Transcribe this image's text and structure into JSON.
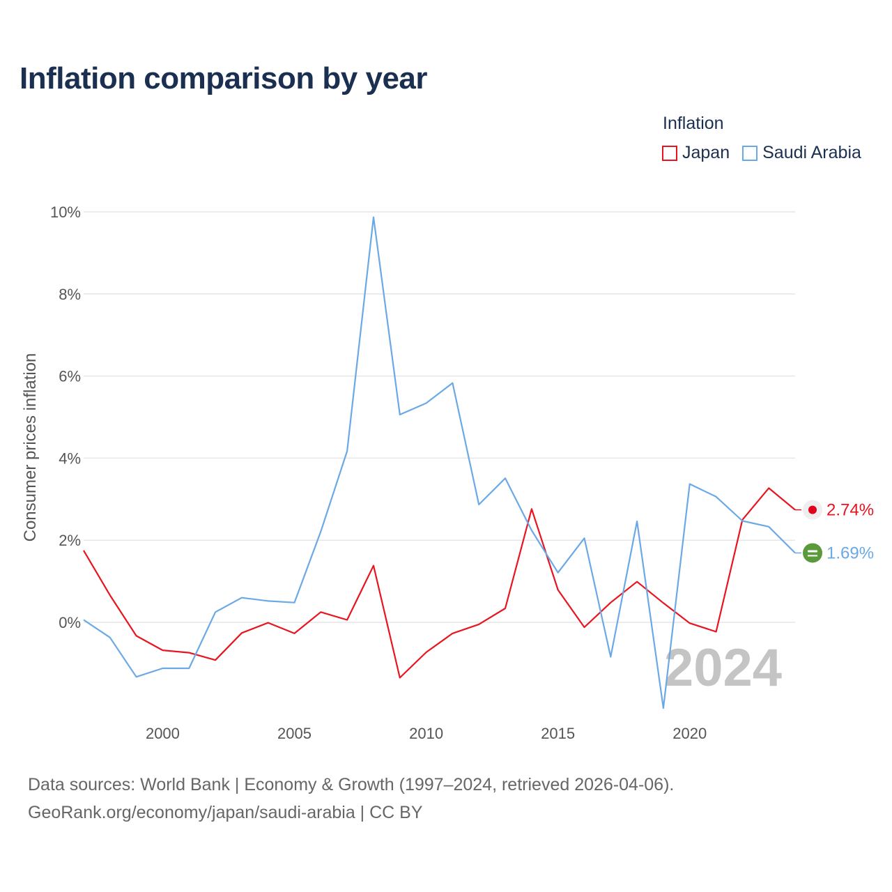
{
  "title": "Inflation comparison by year",
  "legend_title": "Inflation",
  "footer": {
    "line1": "Data sources: World Bank | Economy & Growth (1997–2024, retrieved 2026-04-06).",
    "line2": "GeoRank.org/economy/japan/saudi-arabia | CC BY"
  },
  "colors": {
    "japan": "#e8141f",
    "saudi": "#6aa9e6",
    "grid": "#e6e6e6",
    "year_watermark": "#c4c4c4"
  },
  "chart_data": {
    "type": "line",
    "title": "Inflation comparison by year",
    "ylabel": "Consumer prices inflation",
    "xlabel": "",
    "xlim": [
      1997,
      2024
    ],
    "ylim": [
      -2,
      10
    ],
    "yticks": [
      0,
      2,
      4,
      6,
      8,
      10
    ],
    "ytick_labels": [
      "0%",
      "2%",
      "4%",
      "6%",
      "8%",
      "10%"
    ],
    "xticks": [
      2000,
      2005,
      2010,
      2015,
      2020
    ],
    "xtick_labels": [
      "2000",
      "2005",
      "2010",
      "2015",
      "2020"
    ],
    "current_year": "2024",
    "x": [
      1997,
      1998,
      1999,
      2000,
      2001,
      2002,
      2003,
      2004,
      2005,
      2006,
      2007,
      2008,
      2009,
      2010,
      2011,
      2012,
      2013,
      2014,
      2015,
      2016,
      2017,
      2018,
      2019,
      2020,
      2021,
      2022,
      2023,
      2024
    ],
    "series": [
      {
        "name": "Japan",
        "color": "#e8141f",
        "end_label": "2.74%",
        "flag": "japan-flag",
        "values": [
          1.75,
          0.66,
          -0.33,
          -0.68,
          -0.74,
          -0.92,
          -0.26,
          -0.01,
          -0.27,
          0.25,
          0.06,
          1.38,
          -1.35,
          -0.73,
          -0.27,
          -0.05,
          0.34,
          2.76,
          0.79,
          -0.12,
          0.48,
          0.99,
          0.47,
          -0.02,
          -0.23,
          2.5,
          3.27,
          2.74
        ]
      },
      {
        "name": "Saudi Arabia",
        "color": "#6aa9e6",
        "end_label": "1.69%",
        "flag": "saudi-flag",
        "values": [
          0.06,
          -0.37,
          -1.33,
          -1.12,
          -1.12,
          0.25,
          0.6,
          0.52,
          0.48,
          2.21,
          4.17,
          9.87,
          5.06,
          5.34,
          5.83,
          2.87,
          3.51,
          2.24,
          1.21,
          2.05,
          -0.84,
          2.46,
          -2.09,
          3.37,
          3.06,
          2.47,
          2.33,
          1.69
        ]
      }
    ]
  }
}
